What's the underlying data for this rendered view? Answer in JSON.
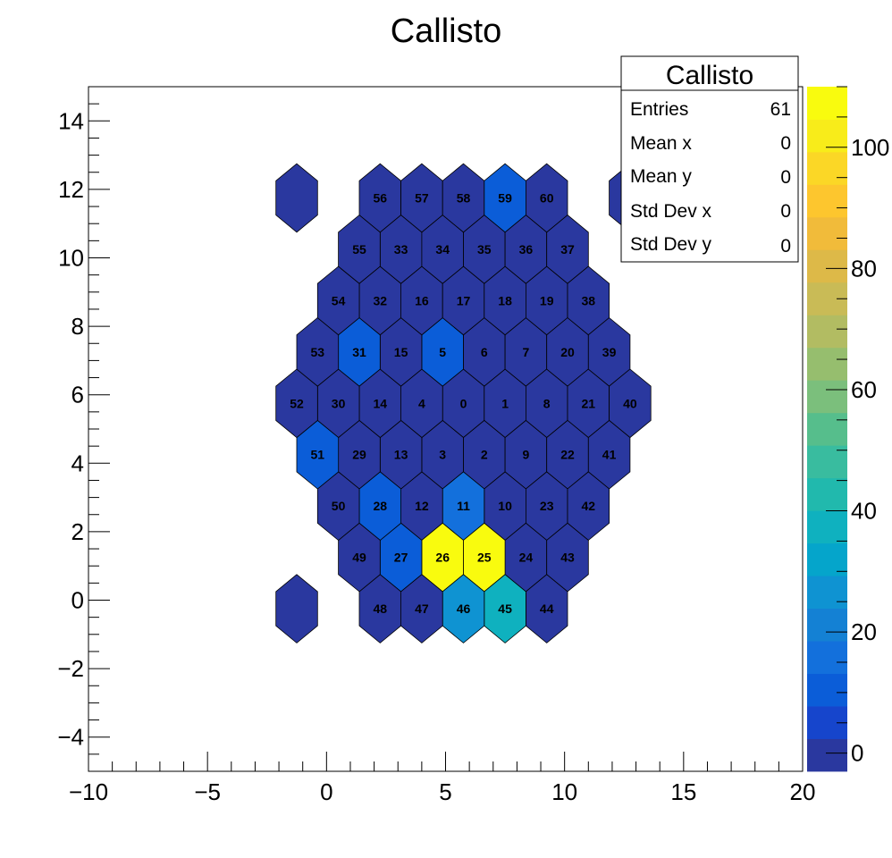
{
  "chart_data": {
    "type": "heatmap",
    "title": "Callisto",
    "xlim": [
      -10,
      20
    ],
    "ylim": [
      -5,
      15
    ],
    "zlim": [
      -3,
      110
    ],
    "x_ticks": [
      "−10",
      "−5",
      "0",
      "5",
      "10",
      "15",
      "20"
    ],
    "y_ticks": [
      "−4",
      "−2",
      "0",
      "2",
      "4",
      "6",
      "8",
      "10",
      "12",
      "14"
    ],
    "z_ticks": [
      "0",
      "20",
      "40",
      "60",
      "80",
      "100"
    ],
    "palette": [
      "#2a389f",
      "#1645cc",
      "#0b5dd8",
      "#1370dc",
      "#1481d4",
      "#0f93d2",
      "#05a5cb",
      "#0fb1bf",
      "#21b9ad",
      "#39bc9f",
      "#56be8c",
      "#7bbf7c",
      "#96be6e",
      "#b2bc62",
      "#c9bb56",
      "#ddb948",
      "#f1bb3a",
      "#fdc62e",
      "#fbd726",
      "#f8ec1a",
      "#f9fb0e"
    ],
    "cells": [
      {
        "label": "0",
        "x": 5.75,
        "y": 5.75,
        "value": 0
      },
      {
        "label": "1",
        "x": 7.5,
        "y": 5.75,
        "value": 0
      },
      {
        "label": "2",
        "x": 6.625,
        "y": 4.25,
        "value": 0
      },
      {
        "label": "3",
        "x": 4.875,
        "y": 4.25,
        "value": 0
      },
      {
        "label": "4",
        "x": 4.0,
        "y": 5.75,
        "value": 0
      },
      {
        "label": "5",
        "x": 4.875,
        "y": 7.25,
        "value": 8
      },
      {
        "label": "6",
        "x": 6.625,
        "y": 7.25,
        "value": 0
      },
      {
        "label": "7",
        "x": 8.375,
        "y": 7.25,
        "value": 0
      },
      {
        "label": "8",
        "x": 9.25,
        "y": 5.75,
        "value": 0
      },
      {
        "label": "9",
        "x": 8.375,
        "y": 4.25,
        "value": 0
      },
      {
        "label": "10",
        "x": 7.5,
        "y": 2.75,
        "value": 0
      },
      {
        "label": "11",
        "x": 5.75,
        "y": 2.75,
        "value": 15
      },
      {
        "label": "12",
        "x": 4.0,
        "y": 2.75,
        "value": 0
      },
      {
        "label": "13",
        "x": 3.125,
        "y": 4.25,
        "value": 0
      },
      {
        "label": "14",
        "x": 2.25,
        "y": 5.75,
        "value": 0
      },
      {
        "label": "15",
        "x": 3.125,
        "y": 7.25,
        "value": 0
      },
      {
        "label": "16",
        "x": 4.0,
        "y": 8.75,
        "value": 0
      },
      {
        "label": "17",
        "x": 5.75,
        "y": 8.75,
        "value": 0
      },
      {
        "label": "18",
        "x": 7.5,
        "y": 8.75,
        "value": 0
      },
      {
        "label": "19",
        "x": 9.25,
        "y": 8.75,
        "value": 0
      },
      {
        "label": "20",
        "x": 10.125,
        "y": 7.25,
        "value": 0
      },
      {
        "label": "21",
        "x": 11.0,
        "y": 5.75,
        "value": 0
      },
      {
        "label": "22",
        "x": 10.125,
        "y": 4.25,
        "value": 0
      },
      {
        "label": "23",
        "x": 9.25,
        "y": 2.75,
        "value": 0
      },
      {
        "label": "24",
        "x": 8.375,
        "y": 1.25,
        "value": 0
      },
      {
        "label": "25",
        "x": 6.625,
        "y": 1.25,
        "value": 108
      },
      {
        "label": "26",
        "x": 4.875,
        "y": 1.25,
        "value": 108
      },
      {
        "label": "27",
        "x": 3.125,
        "y": 1.25,
        "value": 8
      },
      {
        "label": "28",
        "x": 2.25,
        "y": 2.75,
        "value": 8
      },
      {
        "label": "29",
        "x": 1.375,
        "y": 4.25,
        "value": 0
      },
      {
        "label": "30",
        "x": 0.5,
        "y": 5.75,
        "value": 0
      },
      {
        "label": "31",
        "x": 1.375,
        "y": 7.25,
        "value": 8
      },
      {
        "label": "32",
        "x": 2.25,
        "y": 8.75,
        "value": 0
      },
      {
        "label": "33",
        "x": 3.125,
        "y": 10.25,
        "value": 0
      },
      {
        "label": "34",
        "x": 4.875,
        "y": 10.25,
        "value": 0
      },
      {
        "label": "35",
        "x": 6.625,
        "y": 10.25,
        "value": 0
      },
      {
        "label": "36",
        "x": 8.375,
        "y": 10.25,
        "value": 0
      },
      {
        "label": "37",
        "x": 10.125,
        "y": 10.25,
        "value": 0
      },
      {
        "label": "38",
        "x": 11.0,
        "y": 8.75,
        "value": 0
      },
      {
        "label": "39",
        "x": 11.875,
        "y": 7.25,
        "value": 0
      },
      {
        "label": "40",
        "x": 12.75,
        "y": 5.75,
        "value": 0
      },
      {
        "label": "41",
        "x": 11.875,
        "y": 4.25,
        "value": 0
      },
      {
        "label": "42",
        "x": 11.0,
        "y": 2.75,
        "value": 0
      },
      {
        "label": "43",
        "x": 10.125,
        "y": 1.25,
        "value": 0
      },
      {
        "label": "44",
        "x": 9.25,
        "y": -0.25,
        "value": 0
      },
      {
        "label": "45",
        "x": 7.5,
        "y": -0.25,
        "value": 40
      },
      {
        "label": "46",
        "x": 5.75,
        "y": -0.25,
        "value": 25
      },
      {
        "label": "47",
        "x": 4.0,
        "y": -0.25,
        "value": 0
      },
      {
        "label": "48",
        "x": 2.25,
        "y": -0.25,
        "value": 0
      },
      {
        "label": "49",
        "x": 1.375,
        "y": 1.25,
        "value": 0
      },
      {
        "label": "50",
        "x": 0.5,
        "y": 2.75,
        "value": 0
      },
      {
        "label": "51",
        "x": -0.375,
        "y": 4.25,
        "value": 8
      },
      {
        "label": "52",
        "x": -1.25,
        "y": 5.75,
        "value": 0
      },
      {
        "label": "53",
        "x": -0.375,
        "y": 7.25,
        "value": 0
      },
      {
        "label": "54",
        "x": 0.5,
        "y": 8.75,
        "value": 0
      },
      {
        "label": "55",
        "x": 1.375,
        "y": 10.25,
        "value": 0
      },
      {
        "label": "56",
        "x": 2.25,
        "y": 11.75,
        "value": 0
      },
      {
        "label": "57",
        "x": 4.0,
        "y": 11.75,
        "value": 0
      },
      {
        "label": "58",
        "x": 5.75,
        "y": 11.75,
        "value": 0
      },
      {
        "label": "59",
        "x": 7.5,
        "y": 11.75,
        "value": 8
      },
      {
        "label": "60",
        "x": 9.25,
        "y": 11.75,
        "value": 0
      },
      {
        "label": "",
        "x": -1.25,
        "y": 11.75,
        "value": 0
      },
      {
        "label": "",
        "x": 12.75,
        "y": 11.75,
        "value": 0
      },
      {
        "label": "",
        "x": -1.25,
        "y": -0.25,
        "value": 0
      }
    ]
  },
  "stats": {
    "title": "Callisto",
    "rows": [
      {
        "name": "Entries",
        "value": "61"
      },
      {
        "name": "Mean x",
        "value": "0"
      },
      {
        "name": "Mean y",
        "value": "0"
      },
      {
        "name": "Std Dev x",
        "value": "0"
      },
      {
        "name": "Std Dev y",
        "value": "0"
      }
    ]
  }
}
